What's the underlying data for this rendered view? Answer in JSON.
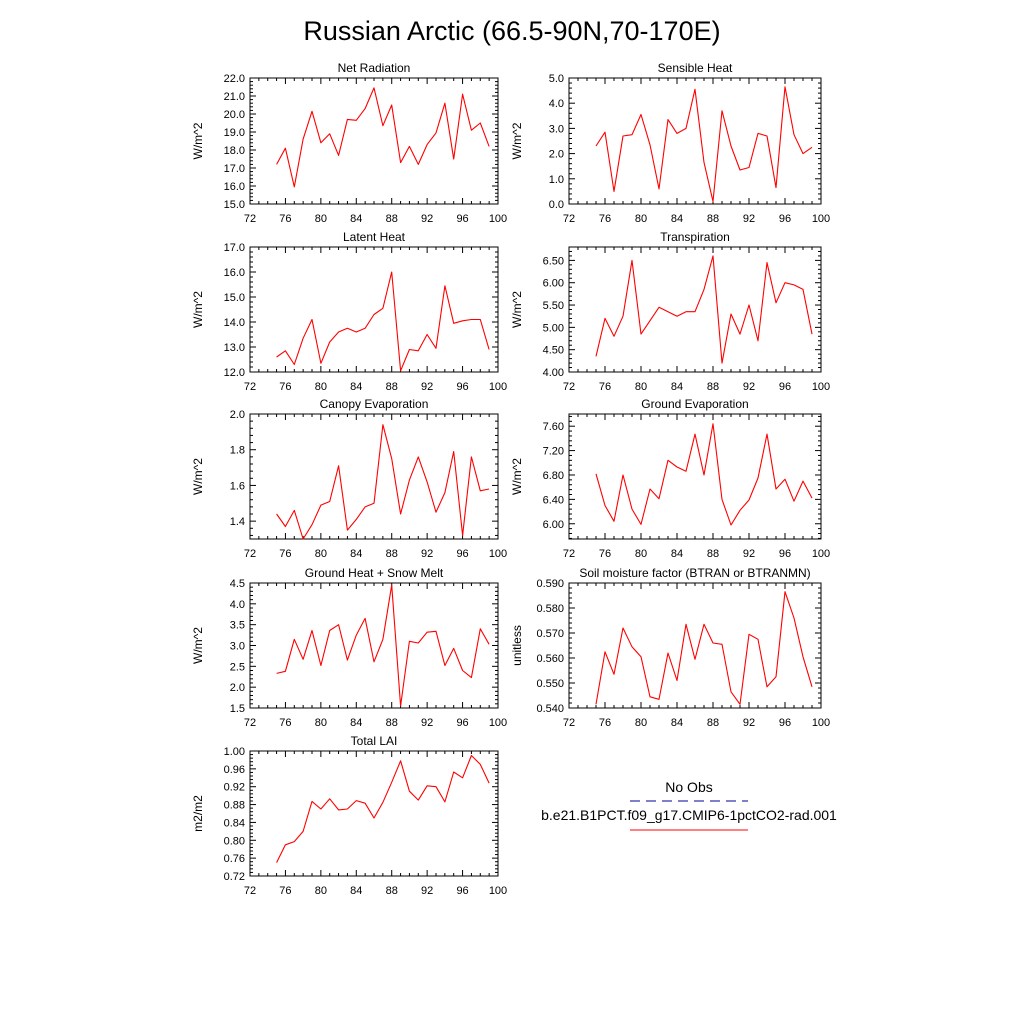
{
  "title": "Russian Arctic (66.5-90N,70-170E)",
  "colors": {
    "model_line": "#ff0000",
    "obs_line": "#3333aa",
    "axis": "#000000"
  },
  "legend": {
    "obs_label": "No Obs",
    "model_label": "b.e21.B1PCT.f09_g17.CMIP6-1pctCO2-rad.001"
  },
  "chart_data": [
    {
      "type": "line",
      "title": "Net Radiation",
      "ylabel": "W/m^2",
      "xlim": [
        72,
        100
      ],
      "ylim": [
        15,
        22
      ],
      "xticks": [
        "72",
        "76",
        "80",
        "84",
        "88",
        "92",
        "96",
        "100"
      ],
      "yticks": [
        "15.0",
        "16.0",
        "17.0",
        "18.0",
        "19.0",
        "20.0",
        "21.0",
        "22.0"
      ],
      "x": [
        75,
        76,
        77,
        78,
        79,
        80,
        81,
        82,
        83,
        84,
        85,
        86,
        87,
        88,
        89,
        90,
        91,
        92,
        93,
        94,
        95,
        96,
        97,
        98,
        99
      ],
      "series": [
        {
          "values": [
            17.2,
            18.1,
            15.95,
            18.6,
            20.15,
            18.4,
            18.9,
            17.7,
            19.7,
            19.65,
            20.3,
            21.45,
            19.35,
            20.5,
            17.3,
            18.2,
            17.2,
            18.3,
            18.95,
            20.6,
            17.5,
            21.1,
            19.1,
            19.5,
            18.2
          ]
        }
      ]
    },
    {
      "type": "line",
      "title": "Sensible Heat",
      "ylabel": "W/m^2",
      "xlim": [
        72,
        100
      ],
      "ylim": [
        0,
        5
      ],
      "xticks": [
        "72",
        "76",
        "80",
        "84",
        "88",
        "92",
        "96",
        "100"
      ],
      "yticks": [
        "0.0",
        "1.0",
        "2.0",
        "3.0",
        "4.0",
        "5.0"
      ],
      "x": [
        75,
        76,
        77,
        78,
        79,
        80,
        81,
        82,
        83,
        84,
        85,
        86,
        87,
        88,
        89,
        90,
        91,
        92,
        93,
        94,
        95,
        96,
        97,
        98,
        99
      ],
      "series": [
        {
          "values": [
            2.3,
            2.85,
            0.5,
            2.7,
            2.75,
            3.55,
            2.35,
            0.6,
            3.35,
            2.8,
            3.0,
            4.55,
            1.65,
            0.1,
            3.7,
            2.3,
            1.35,
            1.45,
            2.8,
            2.7,
            0.65,
            4.65,
            2.75,
            2.0,
            2.25
          ]
        }
      ]
    },
    {
      "type": "line",
      "title": "Latent Heat",
      "ylabel": "W/m^2",
      "xlim": [
        72,
        100
      ],
      "ylim": [
        12,
        17
      ],
      "xticks": [
        "72",
        "76",
        "80",
        "84",
        "88",
        "92",
        "96",
        "100"
      ],
      "yticks": [
        "12.0",
        "13.0",
        "14.0",
        "15.0",
        "16.0",
        "17.0"
      ],
      "x": [
        75,
        76,
        77,
        78,
        79,
        80,
        81,
        82,
        83,
        84,
        85,
        86,
        87,
        88,
        89,
        90,
        91,
        92,
        93,
        94,
        95,
        96,
        97,
        98,
        99
      ],
      "series": [
        {
          "values": [
            12.6,
            12.85,
            12.3,
            13.35,
            14.1,
            12.35,
            13.2,
            13.6,
            13.75,
            13.6,
            13.75,
            14.3,
            14.55,
            16.0,
            12.05,
            12.9,
            12.85,
            13.5,
            12.95,
            15.45,
            13.95,
            14.05,
            14.1,
            14.1,
            12.9
          ]
        }
      ]
    },
    {
      "type": "line",
      "title": "Transpiration",
      "ylabel": "W/m^2",
      "xlim": [
        72,
        100
      ],
      "ylim": [
        4.0,
        6.8
      ],
      "xticks": [
        "72",
        "76",
        "80",
        "84",
        "88",
        "92",
        "96",
        "100"
      ],
      "yticks": [
        "4.00",
        "4.50",
        "5.00",
        "5.50",
        "6.00",
        "6.50"
      ],
      "ytick_values": [
        4.0,
        4.5,
        5.0,
        5.5,
        6.0,
        6.5
      ],
      "x": [
        75,
        76,
        77,
        78,
        79,
        80,
        81,
        82,
        83,
        84,
        85,
        86,
        87,
        88,
        89,
        90,
        91,
        92,
        93,
        94,
        95,
        96,
        97,
        98,
        99
      ],
      "series": [
        {
          "values": [
            4.35,
            5.2,
            4.8,
            5.25,
            6.5,
            4.85,
            5.15,
            5.45,
            5.35,
            5.25,
            5.35,
            5.35,
            5.85,
            6.6,
            4.2,
            5.3,
            4.85,
            5.5,
            4.7,
            6.45,
            5.55,
            6.0,
            5.95,
            5.85,
            4.85
          ]
        }
      ]
    },
    {
      "type": "line",
      "title": "Canopy Evaporation",
      "ylabel": "W/m^2",
      "xlim": [
        72,
        100
      ],
      "ylim": [
        1.3,
        2.0
      ],
      "xticks": [
        "72",
        "76",
        "80",
        "84",
        "88",
        "92",
        "96",
        "100"
      ],
      "yticks": [
        "1.4",
        "1.6",
        "1.8",
        "2.0"
      ],
      "ytick_values": [
        1.4,
        1.6,
        1.8,
        2.0
      ],
      "x": [
        75,
        76,
        77,
        78,
        79,
        80,
        81,
        82,
        83,
        84,
        85,
        86,
        87,
        88,
        89,
        90,
        91,
        92,
        93,
        94,
        95,
        96,
        97,
        98,
        99
      ],
      "series": [
        {
          "values": [
            1.44,
            1.37,
            1.46,
            1.3,
            1.38,
            1.49,
            1.51,
            1.71,
            1.35,
            1.41,
            1.48,
            1.5,
            1.94,
            1.75,
            1.44,
            1.63,
            1.76,
            1.62,
            1.45,
            1.56,
            1.79,
            1.32,
            1.76,
            1.57,
            1.58
          ]
        }
      ]
    },
    {
      "type": "line",
      "title": "Ground Evaporation",
      "ylabel": "W/m^2",
      "xlim": [
        72,
        100
      ],
      "ylim": [
        5.75,
        7.8
      ],
      "xticks": [
        "72",
        "76",
        "80",
        "84",
        "88",
        "92",
        "96",
        "100"
      ],
      "yticks": [
        "6.00",
        "6.40",
        "6.80",
        "7.20",
        "7.60"
      ],
      "ytick_values": [
        6.0,
        6.4,
        6.8,
        7.2,
        7.6
      ],
      "x": [
        75,
        76,
        77,
        78,
        79,
        80,
        81,
        82,
        83,
        84,
        85,
        86,
        87,
        88,
        89,
        90,
        91,
        92,
        93,
        94,
        95,
        96,
        97,
        98,
        99
      ],
      "series": [
        {
          "values": [
            6.82,
            6.3,
            6.04,
            6.8,
            6.24,
            5.99,
            6.57,
            6.41,
            7.04,
            6.93,
            6.86,
            7.47,
            6.8,
            7.64,
            6.4,
            5.98,
            6.22,
            6.39,
            6.75,
            7.47,
            6.57,
            6.73,
            6.37,
            6.7,
            6.42
          ]
        }
      ]
    },
    {
      "type": "line",
      "title": "Ground Heat + Snow Melt",
      "ylabel": "W/m^2",
      "xlim": [
        72,
        100
      ],
      "ylim": [
        1.5,
        4.5
      ],
      "xticks": [
        "72",
        "76",
        "80",
        "84",
        "88",
        "92",
        "96",
        "100"
      ],
      "yticks": [
        "1.5",
        "2.0",
        "2.5",
        "3.0",
        "3.5",
        "4.0",
        "4.5"
      ],
      "x": [
        75,
        76,
        77,
        78,
        79,
        80,
        81,
        82,
        83,
        84,
        85,
        86,
        87,
        88,
        89,
        90,
        91,
        92,
        93,
        94,
        95,
        96,
        97,
        98,
        99
      ],
      "series": [
        {
          "values": [
            2.33,
            2.38,
            3.15,
            2.67,
            3.36,
            2.52,
            3.36,
            3.5,
            2.65,
            3.25,
            3.65,
            2.61,
            3.15,
            4.45,
            1.55,
            3.1,
            3.06,
            3.32,
            3.34,
            2.52,
            2.93,
            2.4,
            2.23,
            3.4,
            3.03
          ]
        }
      ]
    },
    {
      "type": "line",
      "title": "Soil moisture factor (BTRAN or BTRANMN)",
      "ylabel": "unitless",
      "xlim": [
        72,
        100
      ],
      "ylim": [
        0.54,
        0.59
      ],
      "xticks": [
        "72",
        "76",
        "80",
        "84",
        "88",
        "92",
        "96",
        "100"
      ],
      "yticks": [
        "0.540",
        "0.550",
        "0.560",
        "0.570",
        "0.580",
        "0.590"
      ],
      "x": [
        75,
        76,
        77,
        78,
        79,
        80,
        81,
        82,
        83,
        84,
        85,
        86,
        87,
        88,
        89,
        90,
        91,
        92,
        93,
        94,
        95,
        96,
        97,
        98,
        99
      ],
      "series": [
        {
          "values": [
            0.5415,
            0.5625,
            0.5535,
            0.572,
            0.5645,
            0.5605,
            0.5445,
            0.5435,
            0.562,
            0.551,
            0.5735,
            0.5595,
            0.5735,
            0.566,
            0.5655,
            0.5465,
            0.5415,
            0.5695,
            0.5675,
            0.5485,
            0.5525,
            0.5865,
            0.576,
            0.5605,
            0.5485
          ]
        }
      ]
    },
    {
      "type": "line",
      "title": "Total LAI",
      "ylabel": "m2/m2",
      "xlim": [
        72,
        100
      ],
      "ylim": [
        0.72,
        1.0
      ],
      "xticks": [
        "72",
        "76",
        "80",
        "84",
        "88",
        "92",
        "96",
        "100"
      ],
      "yticks": [
        "0.72",
        "0.76",
        "0.80",
        "0.84",
        "0.88",
        "0.92",
        "0.96",
        "1.00"
      ],
      "x": [
        75,
        76,
        77,
        78,
        79,
        80,
        81,
        82,
        83,
        84,
        85,
        86,
        87,
        88,
        89,
        90,
        91,
        92,
        93,
        94,
        95,
        96,
        97,
        98,
        99
      ],
      "series": [
        {
          "values": [
            0.75,
            0.79,
            0.797,
            0.82,
            0.887,
            0.87,
            0.893,
            0.868,
            0.87,
            0.889,
            0.883,
            0.85,
            0.885,
            0.93,
            0.978,
            0.91,
            0.89,
            0.922,
            0.92,
            0.886,
            0.953,
            0.94,
            0.99,
            0.97,
            0.928
          ]
        }
      ]
    }
  ]
}
